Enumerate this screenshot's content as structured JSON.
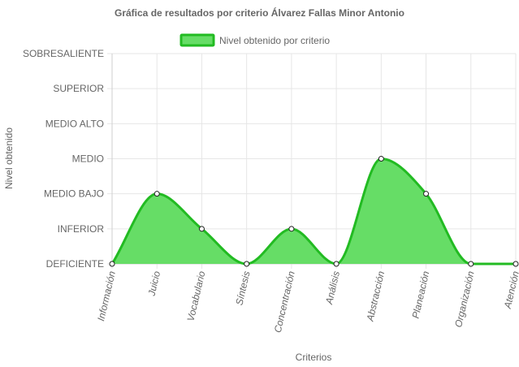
{
  "chart_data": {
    "type": "area",
    "title": "Gráfica de resultados por criterio Álvarez Fallas Minor Antonio",
    "xlabel": "Criterios",
    "ylabel": "Nivel obtenido",
    "categories": [
      "Información",
      "Juicio",
      "Vocabulario",
      "Síntesis",
      "Concentración",
      "Análisis",
      "Abstracción",
      "Planeación",
      "Organización",
      "Atención"
    ],
    "y_levels": [
      "DEFICIENTE",
      "INFERIOR",
      "MEDIO BAJO",
      "MEDIO",
      "MEDIO ALTO",
      "SUPERIOR",
      "SOBRESALIENTE"
    ],
    "ylim": [
      0,
      6
    ],
    "grid": true,
    "legend_position": "top",
    "series": [
      {
        "name": "Nivel obtenido por criterio",
        "values": [
          0,
          2,
          1,
          0,
          1,
          0,
          3,
          2,
          0,
          0
        ]
      }
    ],
    "colors": {
      "fill": "#66dd66",
      "line": "#22bb22",
      "point_fill": "#ffffff",
      "point_stroke": "#222222"
    }
  }
}
